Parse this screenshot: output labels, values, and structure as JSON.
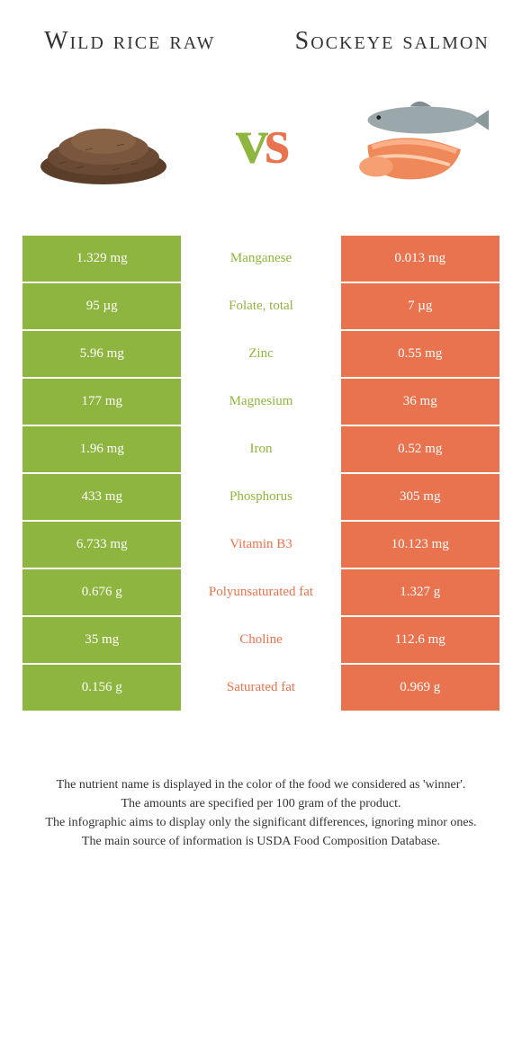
{
  "header": {
    "left": "Wild rice raw",
    "right": "Sockeye salmon"
  },
  "vs": {
    "v": "v",
    "s": "s"
  },
  "colors": {
    "left_bg": "#8eb53f",
    "right_bg": "#e8734e",
    "left_text": "#8eb53f",
    "right_text": "#e8734e",
    "mid_bg": "#ffffff"
  },
  "rows": [
    {
      "left": "1.329 mg",
      "label": "Manganese",
      "right": "0.013 mg",
      "winner": "left"
    },
    {
      "left": "95 µg",
      "label": "Folate, total",
      "right": "7 µg",
      "winner": "left"
    },
    {
      "left": "5.96 mg",
      "label": "Zinc",
      "right": "0.55 mg",
      "winner": "left"
    },
    {
      "left": "177 mg",
      "label": "Magnesium",
      "right": "36 mg",
      "winner": "left"
    },
    {
      "left": "1.96 mg",
      "label": "Iron",
      "right": "0.52 mg",
      "winner": "left"
    },
    {
      "left": "433 mg",
      "label": "Phosphorus",
      "right": "305 mg",
      "winner": "left"
    },
    {
      "left": "6.733 mg",
      "label": "Vitamin B3",
      "right": "10.123 mg",
      "winner": "right"
    },
    {
      "left": "0.676 g",
      "label": "Polyunsaturated fat",
      "right": "1.327 g",
      "winner": "right"
    },
    {
      "left": "35 mg",
      "label": "Choline",
      "right": "112.6 mg",
      "winner": "right"
    },
    {
      "left": "0.156 g",
      "label": "Saturated fat",
      "right": "0.969 g",
      "winner": "right"
    }
  ],
  "footer": {
    "line1": "The nutrient name is displayed in the color of the food we considered as 'winner'.",
    "line2": "The amounts are specified per 100 gram of the product.",
    "line3": "The infographic aims to display only the significant differences, ignoring minor ones.",
    "line4": "The main source of information is USDA Food Composition Database."
  }
}
